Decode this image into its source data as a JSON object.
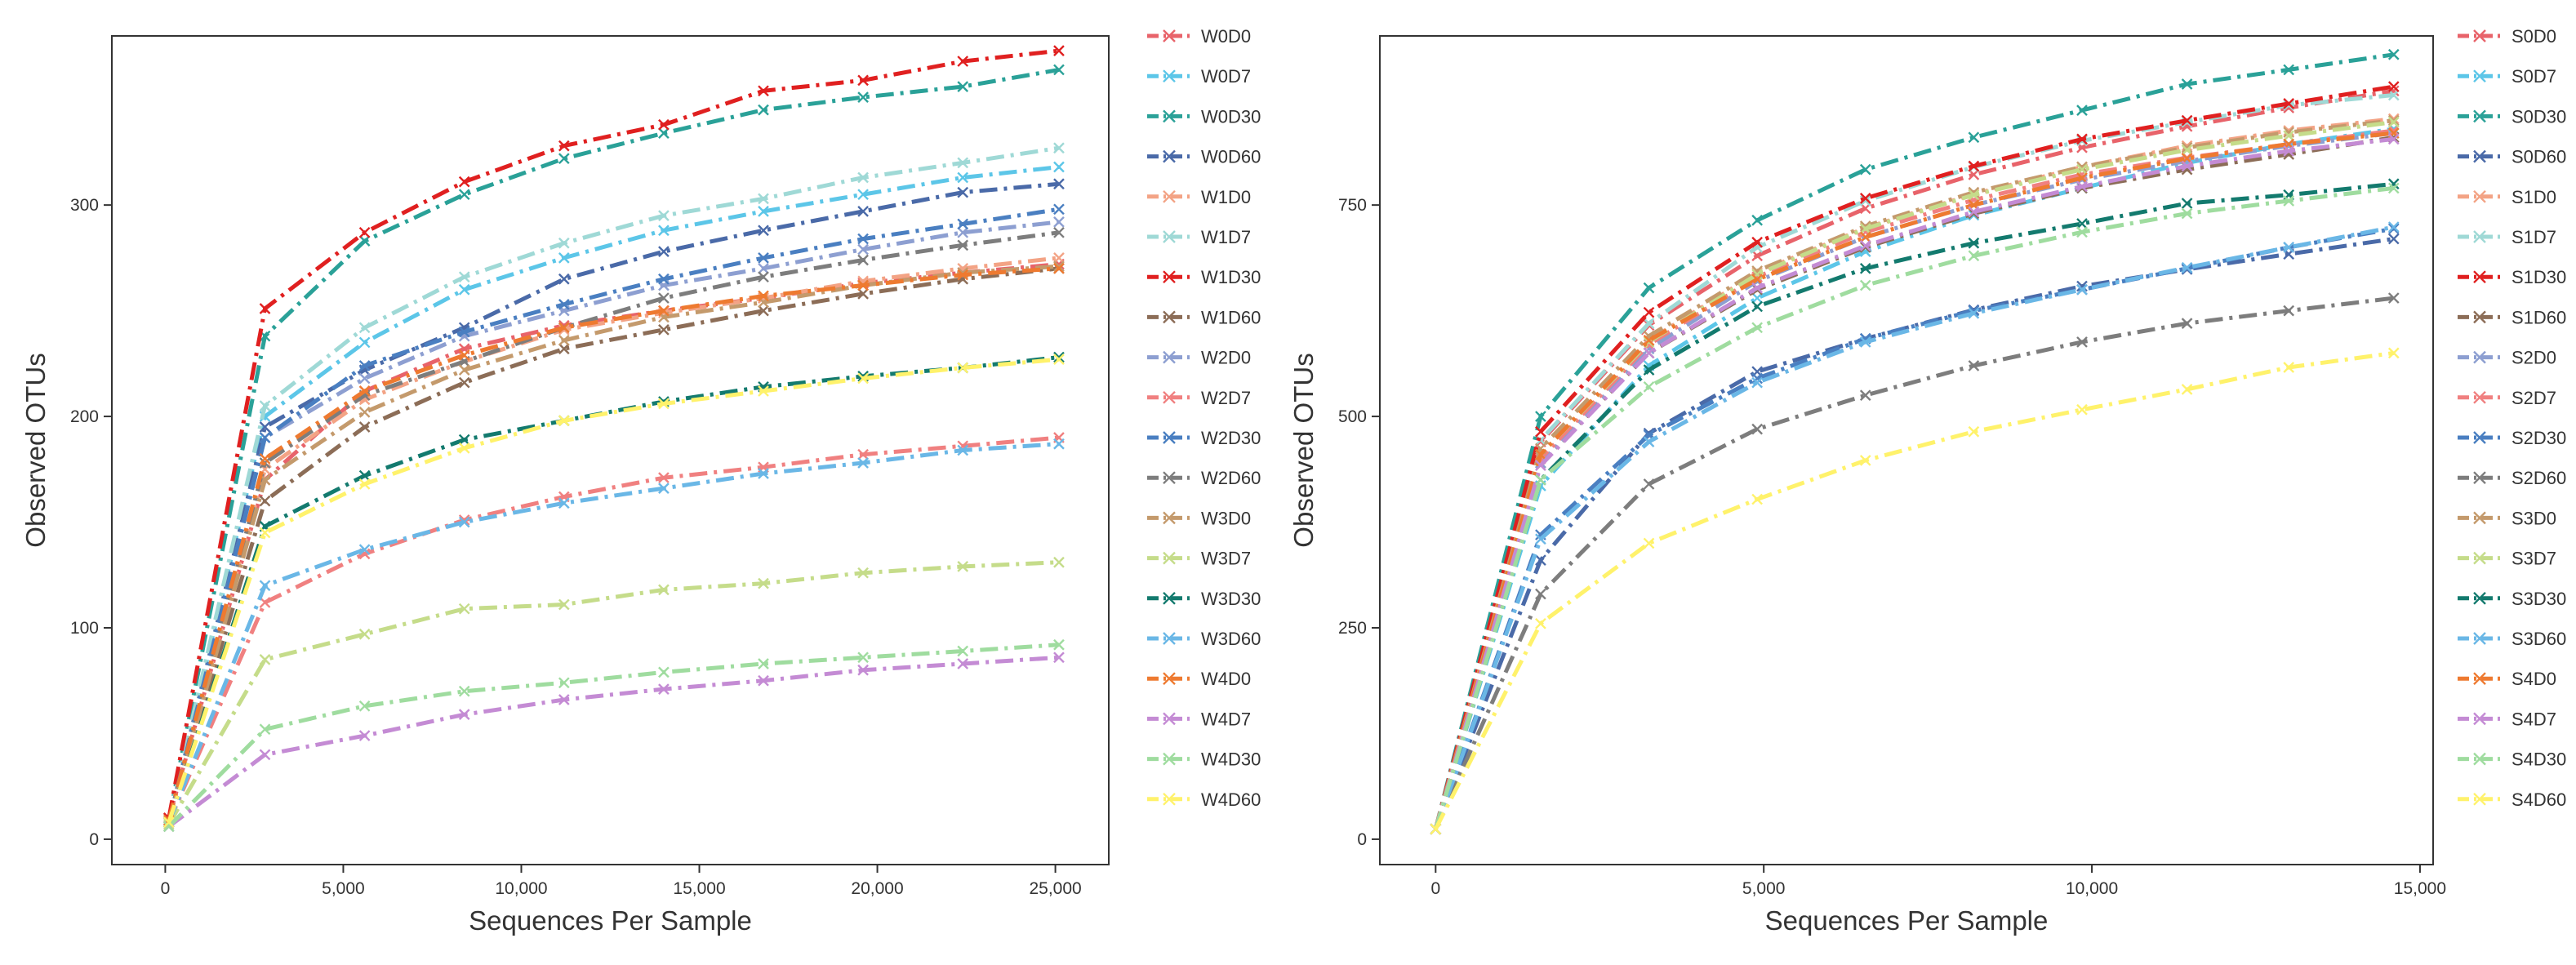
{
  "chart_data": [
    {
      "type": "line",
      "xlabel": "Sequences Per Sample",
      "ylabel": "Observed OTUs",
      "xlim": [
        -1500,
        26500
      ],
      "ylim": [
        -12,
        380
      ],
      "xticks": [
        0,
        5000,
        10000,
        15000,
        20000,
        25000
      ],
      "xtick_labels": [
        "0",
        "5,000",
        "10,000",
        "15,000",
        "20,000",
        "25,000"
      ],
      "yticks": [
        0,
        100,
        200,
        300
      ],
      "ytick_labels": [
        "0",
        "100",
        "200",
        "300"
      ],
      "grid": false,
      "legend_position": "right",
      "x": [
        100,
        2800,
        5600,
        8400,
        11200,
        14000,
        16800,
        19600,
        22400,
        25100
      ],
      "series": [
        {
          "name": "W0D0",
          "color": "#e8636a",
          "values": [
            10,
            170,
            212,
            232,
            243,
            250,
            256,
            263,
            268,
            272
          ]
        },
        {
          "name": "W0D7",
          "color": "#5cc6e8",
          "values": [
            9,
            200,
            235,
            260,
            275,
            288,
            297,
            305,
            313,
            318
          ]
        },
        {
          "name": "W0D30",
          "color": "#2aa198",
          "values": [
            9,
            238,
            283,
            305,
            322,
            334,
            345,
            351,
            356,
            364
          ]
        },
        {
          "name": "W0D60",
          "color": "#4a6aa8",
          "values": [
            8,
            195,
            222,
            242,
            265,
            278,
            288,
            297,
            306,
            310
          ]
        },
        {
          "name": "W1D0",
          "color": "#f3a385",
          "values": [
            9,
            175,
            208,
            226,
            241,
            249,
            256,
            264,
            270,
            275
          ]
        },
        {
          "name": "W1D7",
          "color": "#9fd9d6",
          "values": [
            9,
            205,
            242,
            266,
            282,
            295,
            303,
            313,
            320,
            327
          ]
        },
        {
          "name": "W1D30",
          "color": "#e02020",
          "values": [
            10,
            251,
            287,
            311,
            328,
            338,
            354,
            359,
            368,
            373
          ]
        },
        {
          "name": "W1D60",
          "color": "#8c6d57",
          "values": [
            8,
            160,
            195,
            216,
            232,
            241,
            250,
            258,
            265,
            270
          ]
        },
        {
          "name": "W2D0",
          "color": "#8d9fd1",
          "values": [
            8,
            190,
            218,
            238,
            250,
            262,
            270,
            279,
            287,
            292
          ]
        },
        {
          "name": "W2D7",
          "color": "#f08080",
          "values": [
            8,
            112,
            135,
            151,
            162,
            171,
            176,
            182,
            186,
            190
          ]
        },
        {
          "name": "W2D30",
          "color": "#4a7fc1",
          "values": [
            8,
            190,
            224,
            240,
            253,
            265,
            275,
            284,
            291,
            298
          ]
        },
        {
          "name": "W2D60",
          "color": "#7d7d7d",
          "values": [
            8,
            178,
            210,
            226,
            242,
            256,
            266,
            274,
            281,
            287
          ]
        },
        {
          "name": "W3D0",
          "color": "#c49a6c",
          "values": [
            8,
            170,
            202,
            222,
            236,
            247,
            254,
            262,
            268,
            271
          ]
        },
        {
          "name": "W3D7",
          "color": "#c5dc8a",
          "values": [
            7,
            85,
            97,
            109,
            111,
            118,
            121,
            126,
            129,
            131
          ]
        },
        {
          "name": "W3D30",
          "color": "#137a6e",
          "values": [
            8,
            148,
            172,
            189,
            198,
            207,
            214,
            219,
            223,
            228
          ]
        },
        {
          "name": "W3D60",
          "color": "#6ab7e6",
          "values": [
            8,
            120,
            137,
            150,
            159,
            166,
            173,
            178,
            184,
            187
          ]
        },
        {
          "name": "W4D0",
          "color": "#ee7a30",
          "values": [
            9,
            180,
            212,
            229,
            242,
            250,
            257,
            262,
            267,
            270
          ]
        },
        {
          "name": "W4D7",
          "color": "#c48bd4",
          "values": [
            6,
            40,
            49,
            59,
            66,
            71,
            75,
            80,
            83,
            86
          ]
        },
        {
          "name": "W4D30",
          "color": "#9fdc9f",
          "values": [
            6,
            52,
            63,
            70,
            74,
            79,
            83,
            86,
            89,
            92
          ]
        },
        {
          "name": "W4D60",
          "color": "#fff26b",
          "values": [
            8,
            145,
            168,
            185,
            198,
            206,
            212,
            218,
            223,
            227
          ]
        }
      ]
    },
    {
      "type": "line",
      "xlabel": "Sequences Per Sample",
      "ylabel": "Observed OTUs",
      "xlim": [
        -850,
        15200
      ],
      "ylim": [
        -30,
        950
      ],
      "xticks": [
        0,
        5000,
        10000,
        15000
      ],
      "xtick_labels": [
        "0",
        "5,000",
        "10,000",
        "15,000"
      ],
      "yticks": [
        0,
        250,
        500,
        750
      ],
      "ytick_labels": [
        "0",
        "250",
        "500",
        "750"
      ],
      "grid": false,
      "legend_position": "right",
      "x": [
        0,
        1600,
        3250,
        4900,
        6550,
        8200,
        9850,
        11450,
        13000,
        14600
      ],
      "series": [
        {
          "name": "S0D0",
          "color": "#e8636a",
          "values": [
            12,
            470,
            608,
            690,
            746,
            786,
            818,
            843,
            865,
            885
          ]
        },
        {
          "name": "S0D7",
          "color": "#5cc6e8",
          "values": [
            12,
            418,
            560,
            640,
            695,
            738,
            770,
            800,
            822,
            840
          ]
        },
        {
          "name": "S0D30",
          "color": "#2aa198",
          "values": [
            12,
            500,
            652,
            732,
            792,
            830,
            862,
            893,
            910,
            928
          ]
        },
        {
          "name": "S0D60",
          "color": "#4a6aa8",
          "values": [
            12,
            330,
            480,
            553,
            592,
            626,
            654,
            674,
            692,
            710
          ]
        },
        {
          "name": "S1D0",
          "color": "#f3a385",
          "values": [
            12,
            455,
            590,
            670,
            723,
            763,
            795,
            820,
            838,
            852
          ]
        },
        {
          "name": "S1D7",
          "color": "#9fd9d6",
          "values": [
            12,
            472,
            610,
            700,
            755,
            795,
            826,
            848,
            868,
            880
          ]
        },
        {
          "name": "S1D30",
          "color": "#e02020",
          "values": [
            12,
            482,
            623,
            706,
            758,
            796,
            828,
            850,
            870,
            890
          ]
        },
        {
          "name": "S1D60",
          "color": "#8c6d57",
          "values": [
            12,
            445,
            575,
            650,
            700,
            740,
            770,
            792,
            810,
            830
          ]
        },
        {
          "name": "S2D0",
          "color": "#8d9fd1",
          "values": [
            12,
            445,
            580,
            660,
            712,
            750,
            780,
            802,
            820,
            835
          ]
        },
        {
          "name": "S2D7",
          "color": "#f08080",
          "values": [
            12,
            450,
            585,
            665,
            718,
            756,
            786,
            806,
            822,
            838
          ]
        },
        {
          "name": "S2D30",
          "color": "#4a7fc1",
          "values": [
            12,
            360,
            478,
            545,
            592,
            625,
            650,
            675,
            700,
            722
          ]
        },
        {
          "name": "S2D60",
          "color": "#7d7d7d",
          "values": [
            12,
            290,
            420,
            485,
            525,
            560,
            588,
            610,
            625,
            640
          ]
        },
        {
          "name": "S3D0",
          "color": "#c49a6c",
          "values": [
            12,
            462,
            595,
            672,
            725,
            765,
            795,
            818,
            836,
            850
          ]
        },
        {
          "name": "S3D7",
          "color": "#c5dc8a",
          "values": [
            12,
            455,
            588,
            668,
            722,
            762,
            792,
            815,
            832,
            848
          ]
        },
        {
          "name": "S3D30",
          "color": "#137a6e",
          "values": [
            12,
            425,
            555,
            630,
            675,
            705,
            728,
            752,
            762,
            775
          ]
        },
        {
          "name": "S3D60",
          "color": "#6ab7e6",
          "values": [
            12,
            355,
            470,
            540,
            588,
            622,
            650,
            676,
            700,
            724
          ]
        },
        {
          "name": "S4D0",
          "color": "#ee7a30",
          "values": [
            12,
            455,
            590,
            662,
            712,
            750,
            782,
            805,
            822,
            835
          ]
        },
        {
          "name": "S4D7",
          "color": "#c48bd4",
          "values": [
            12,
            442,
            575,
            652,
            702,
            742,
            772,
            796,
            814,
            828
          ]
        },
        {
          "name": "S4D30",
          "color": "#9fdc9f",
          "values": [
            12,
            425,
            535,
            605,
            655,
            690,
            718,
            740,
            755,
            770
          ]
        },
        {
          "name": "S4D60",
          "color": "#fff26b",
          "values": [
            12,
            255,
            350,
            402,
            448,
            482,
            508,
            532,
            558,
            575
          ]
        }
      ]
    }
  ]
}
